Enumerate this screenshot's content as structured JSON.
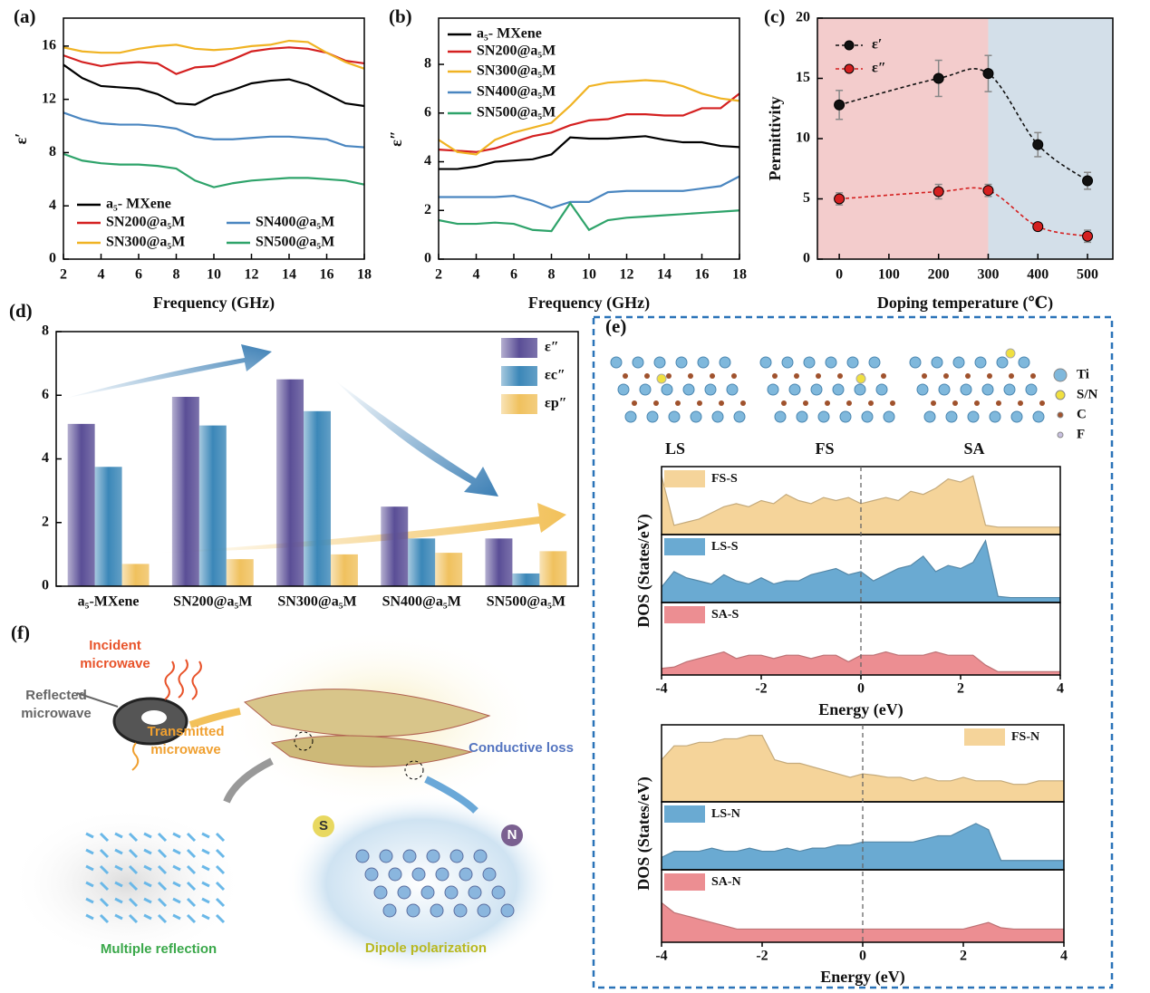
{
  "chart_data": [
    {
      "type": "line",
      "label": "(a)",
      "xlabel": "Frequency (GHz)",
      "ylabel": "ε′",
      "x": [
        2,
        3,
        4,
        5,
        6,
        7,
        8,
        9,
        10,
        11,
        12,
        13,
        14,
        15,
        16,
        17,
        18
      ],
      "xlim": [
        2,
        18
      ],
      "xticks": [
        2,
        4,
        6,
        8,
        10,
        12,
        14,
        16,
        18
      ],
      "ylim": [
        0,
        18.1
      ],
      "yticks": [
        0,
        4,
        8,
        12,
        16
      ],
      "legend": "lower left",
      "series": [
        {
          "name": "a₅- MXene",
          "color": "#000000",
          "values": [
            14.6,
            13.6,
            13.0,
            12.9,
            12.8,
            12.4,
            11.7,
            11.6,
            12.3,
            12.7,
            13.2,
            13.4,
            13.5,
            13.1,
            12.4,
            11.7,
            11.5
          ]
        },
        {
          "name": "SN200@a₅M",
          "color": "#d42020",
          "values": [
            15.3,
            14.8,
            14.5,
            14.7,
            14.8,
            14.7,
            13.9,
            14.4,
            14.5,
            15.0,
            15.6,
            15.8,
            15.9,
            15.8,
            15.5,
            14.9,
            14.7
          ]
        },
        {
          "name": "SN300@a₅M",
          "color": "#f0b323",
          "values": [
            15.9,
            15.6,
            15.5,
            15.5,
            15.8,
            16.0,
            16.1,
            15.8,
            15.7,
            15.8,
            16.0,
            16.1,
            16.4,
            16.3,
            15.5,
            14.8,
            14.3
          ]
        },
        {
          "name": "SN400@a₅M",
          "color": "#4a86c0",
          "values": [
            11.0,
            10.5,
            10.2,
            10.1,
            10.1,
            10.0,
            9.8,
            9.2,
            9.0,
            9.0,
            9.1,
            9.2,
            9.2,
            9.1,
            9.0,
            8.5,
            8.4
          ]
        },
        {
          "name": "SN500@a₅M",
          "color": "#2ea36a",
          "values": [
            7.9,
            7.4,
            7.2,
            7.1,
            7.1,
            7.0,
            6.8,
            5.9,
            5.4,
            5.7,
            5.9,
            6.0,
            6.1,
            6.1,
            6.0,
            5.9,
            5.6
          ]
        }
      ]
    },
    {
      "type": "line",
      "label": "(b)",
      "xlabel": "Frequency (GHz)",
      "ylabel": "ε″",
      "x": [
        2,
        3,
        4,
        5,
        6,
        7,
        8,
        9,
        10,
        11,
        12,
        13,
        14,
        15,
        16,
        17,
        18
      ],
      "xlim": [
        2,
        18
      ],
      "xticks": [
        2,
        4,
        6,
        8,
        10,
        12,
        14,
        16,
        18
      ],
      "ylim": [
        0,
        9.9
      ],
      "yticks": [
        0,
        2,
        4,
        6,
        8
      ],
      "legend": "upper left",
      "series": [
        {
          "name": "a₅- MXene",
          "color": "#000000",
          "values": [
            3.7,
            3.7,
            3.8,
            4.0,
            4.05,
            4.1,
            4.3,
            5.0,
            4.95,
            4.95,
            5.0,
            5.05,
            4.9,
            4.8,
            4.8,
            4.65,
            4.6
          ]
        },
        {
          "name": "SN200@a₅M",
          "color": "#d42020",
          "values": [
            4.5,
            4.45,
            4.4,
            4.55,
            4.8,
            5.05,
            5.2,
            5.5,
            5.7,
            5.75,
            5.95,
            5.95,
            5.9,
            5.9,
            6.2,
            6.2,
            6.8
          ]
        },
        {
          "name": "SN300@a₅M",
          "color": "#f0b323",
          "values": [
            4.9,
            4.4,
            4.3,
            4.9,
            5.2,
            5.4,
            5.6,
            6.3,
            7.1,
            7.25,
            7.3,
            7.35,
            7.3,
            7.1,
            6.8,
            6.6,
            6.5
          ]
        },
        {
          "name": "SN400@a₅M",
          "color": "#4a86c0",
          "values": [
            2.55,
            2.55,
            2.55,
            2.55,
            2.6,
            2.4,
            2.1,
            2.35,
            2.35,
            2.75,
            2.8,
            2.8,
            2.8,
            2.8,
            2.9,
            3.0,
            3.4
          ]
        },
        {
          "name": "SN500@a₅M",
          "color": "#2ea36a",
          "values": [
            1.6,
            1.45,
            1.45,
            1.5,
            1.45,
            1.2,
            1.15,
            2.3,
            1.2,
            1.6,
            1.7,
            1.75,
            1.8,
            1.85,
            1.9,
            1.95,
            2.0
          ]
        }
      ]
    },
    {
      "type": "scatter",
      "label": "(c)",
      "xlabel": "Doping temperature (℃)",
      "ylabel": "Permittivity",
      "x": [
        0,
        200,
        300,
        400,
        500
      ],
      "xlim": [
        -44,
        551
      ],
      "xticks": [
        0,
        100,
        200,
        300,
        400,
        500
      ],
      "ylim": [
        0,
        20
      ],
      "yticks": [
        0,
        5,
        10,
        15,
        20
      ],
      "legend": "upper left",
      "regions": [
        {
          "from": -44,
          "to": 300,
          "color": "#f3cccc"
        },
        {
          "from": 300,
          "to": 551,
          "color": "#d3dfe9"
        }
      ],
      "series": [
        {
          "name": "ε′",
          "color": "#111111",
          "values": [
            12.8,
            15.0,
            15.4,
            9.5,
            6.5
          ],
          "errors": [
            1.2,
            1.5,
            1.5,
            1.0,
            0.7
          ]
        },
        {
          "name": "ε″",
          "color": "#d42020",
          "values": [
            5.0,
            5.6,
            5.7,
            2.7,
            1.9
          ],
          "errors": [
            0.5,
            0.6,
            0.5,
            0.3,
            0.5
          ]
        }
      ]
    },
    {
      "type": "bar",
      "label": "(d)",
      "categories": [
        "a₅-MXene",
        "SN200@a₅M",
        "SN300@a₅M",
        "SN400@a₅M",
        "SN500@a₅M"
      ],
      "ylim": [
        0,
        8
      ],
      "yticks": [
        0,
        2,
        4,
        6,
        8
      ],
      "legend": "upper right",
      "series": [
        {
          "name": "ε″",
          "color": "#5a4e96",
          "values": [
            5.1,
            5.95,
            6.5,
            2.5,
            1.5
          ]
        },
        {
          "name": "εc″",
          "color": "#3b87b8",
          "values": [
            3.75,
            5.05,
            5.5,
            1.5,
            0.4
          ]
        },
        {
          "name": "εp″",
          "color": "#f0c15e",
          "values": [
            0.7,
            0.85,
            1.0,
            1.05,
            1.1
          ]
        }
      ]
    },
    {
      "type": "area",
      "xlabel": "Energy (eV)",
      "ylabel": "DOS (States/eV)",
      "x": [
        -4,
        -3.75,
        -3.5,
        -3.25,
        -3,
        -2.75,
        -2.5,
        -2.25,
        -2,
        -1.75,
        -1.5,
        -1.25,
        -1,
        -0.75,
        -0.5,
        -0.25,
        0,
        0.25,
        0.5,
        0.75,
        1,
        1.25,
        1.5,
        1.75,
        2,
        2.25,
        2.5,
        2.75,
        3,
        3.25,
        3.5,
        3.75,
        4
      ],
      "xlim": [
        -4,
        4
      ],
      "xticks": [
        -4,
        -2,
        0,
        2,
        4
      ],
      "ylim": [
        0,
        1.1
      ],
      "vline": 0,
      "panels": [
        {
          "name": "FS-S",
          "color": "#f5d49a",
          "values": [
            0.95,
            0.15,
            0.2,
            0.25,
            0.35,
            0.45,
            0.5,
            0.45,
            0.55,
            0.5,
            0.65,
            0.55,
            0.5,
            0.6,
            0.55,
            0.6,
            0.5,
            0.55,
            0.6,
            0.55,
            0.7,
            0.65,
            0.75,
            0.9,
            0.85,
            0.95,
            0.15,
            0.12,
            0.12,
            0.12,
            0.12,
            0.12,
            0.12
          ]
        },
        {
          "name": "LS-S",
          "color": "#6aaad2",
          "values": [
            0.25,
            0.5,
            0.4,
            0.35,
            0.3,
            0.45,
            0.35,
            0.3,
            0.4,
            0.3,
            0.35,
            0.35,
            0.45,
            0.5,
            0.55,
            0.45,
            0.5,
            0.35,
            0.45,
            0.55,
            0.6,
            0.75,
            0.5,
            0.6,
            0.55,
            0.65,
            1.0,
            0.1,
            0.08,
            0.08,
            0.08,
            0.08,
            0.08
          ]
        },
        {
          "name": "SA-S",
          "color": "#ec8e92",
          "values": [
            0.1,
            0.12,
            0.2,
            0.25,
            0.3,
            0.35,
            0.25,
            0.3,
            0.3,
            0.25,
            0.3,
            0.3,
            0.25,
            0.3,
            0.3,
            0.2,
            0.3,
            0.3,
            0.35,
            0.3,
            0.3,
            0.3,
            0.35,
            0.3,
            0.3,
            0.3,
            0.15,
            0.05,
            0.05,
            0.05,
            0.05,
            0.05,
            0.05
          ]
        }
      ]
    },
    {
      "type": "area",
      "xlabel": "Energy (eV)",
      "ylabel": "DOS (States/eV)",
      "x": [
        -4,
        -3.75,
        -3.5,
        -3.25,
        -3,
        -2.75,
        -2.5,
        -2.25,
        -2,
        -1.75,
        -1.5,
        -1.25,
        -1,
        -0.75,
        -0.5,
        -0.25,
        0,
        0.25,
        0.5,
        0.75,
        1,
        1.25,
        1.5,
        1.75,
        2,
        2.25,
        2.5,
        2.75,
        3,
        3.25,
        3.5,
        3.75,
        4
      ],
      "xlim": [
        -4,
        4
      ],
      "xticks": [
        -4,
        -2,
        0,
        2,
        4
      ],
      "ylim": [
        0,
        1.1
      ],
      "vline": 0,
      "panels": [
        {
          "name": "FS-N",
          "color": "#f5d49a",
          "values": [
            0.6,
            0.8,
            0.8,
            0.85,
            0.85,
            0.9,
            0.9,
            0.95,
            0.95,
            0.6,
            0.55,
            0.55,
            0.5,
            0.45,
            0.4,
            0.35,
            0.4,
            0.38,
            0.35,
            0.35,
            0.3,
            0.35,
            0.3,
            0.3,
            0.35,
            0.3,
            0.3,
            0.3,
            0.25,
            0.25,
            0.3,
            0.3,
            0.3
          ]
        },
        {
          "name": "LS-N",
          "color": "#6aaad2",
          "values": [
            0.2,
            0.3,
            0.3,
            0.3,
            0.35,
            0.3,
            0.3,
            0.35,
            0.3,
            0.3,
            0.35,
            0.3,
            0.35,
            0.35,
            0.4,
            0.4,
            0.45,
            0.45,
            0.45,
            0.45,
            0.45,
            0.5,
            0.55,
            0.55,
            0.65,
            0.75,
            0.65,
            0.15,
            0.15,
            0.15,
            0.15,
            0.15,
            0.15
          ]
        },
        {
          "name": "SA-N",
          "color": "#ec8e92",
          "values": [
            0.6,
            0.45,
            0.4,
            0.35,
            0.3,
            0.25,
            0.2,
            0.2,
            0.2,
            0.2,
            0.2,
            0.2,
            0.2,
            0.2,
            0.2,
            0.2,
            0.2,
            0.2,
            0.2,
            0.2,
            0.2,
            0.2,
            0.2,
            0.2,
            0.2,
            0.25,
            0.3,
            0.22,
            0.2,
            0.2,
            0.2,
            0.2,
            0.2
          ]
        }
      ]
    }
  ],
  "panel_e": {
    "label": "(e)",
    "structures": [
      "LS",
      "FS",
      "SA"
    ],
    "species": [
      "Ti",
      "S/N",
      "C",
      "F"
    ]
  },
  "schematic": {
    "label": "(f)",
    "texts": [
      "Incident",
      "microwave",
      "Reflected",
      "microwave",
      "Transmitted",
      "microwave",
      "Conductive loss",
      "Multiple reflection",
      "Dipole polarization",
      "S",
      "N"
    ]
  }
}
